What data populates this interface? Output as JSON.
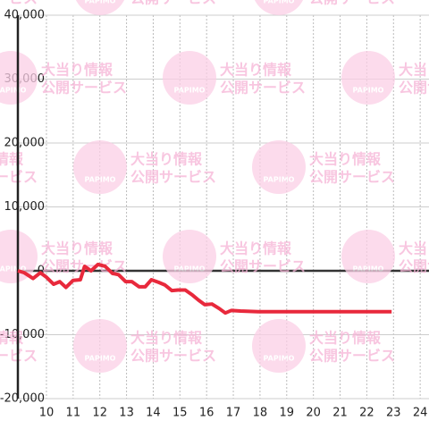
{
  "chart_data": {
    "type": "line",
    "x": [
      8.93,
      9.17,
      9.5,
      9.77,
      10,
      10.27,
      10.5,
      10.73,
      11,
      11.27,
      11.43,
      11.67,
      11.93,
      12.2,
      12.47,
      12.7,
      12.97,
      13.2,
      13.47,
      13.7,
      13.93,
      14.2,
      14.43,
      14.7,
      14.93,
      15.2,
      15.47,
      15.7,
      15.93,
      16.2,
      16.47,
      16.7,
      16.93,
      17.27,
      17.93,
      22.93
    ],
    "values": [
      0,
      -300,
      -1200,
      -300,
      -1000,
      -2100,
      -1700,
      -2600,
      -1500,
      -1400,
      700,
      0,
      1000,
      700,
      -400,
      -600,
      -1700,
      -1700,
      -2500,
      -2500,
      -1400,
      -1800,
      -2200,
      -3100,
      -3000,
      -3000,
      -3800,
      -4600,
      -5300,
      -5200,
      -5900,
      -6600,
      -6200,
      -6300,
      -6400,
      -6400
    ],
    "color": "#e8293c",
    "xlim": [
      8.93,
      24.33
    ],
    "xticks": [
      10,
      11,
      12,
      13,
      14,
      15,
      16,
      17,
      18,
      19,
      20,
      21,
      22,
      23,
      24
    ],
    "ylim": [
      -20000,
      40000
    ],
    "yticks": [
      {
        "value": -20000,
        "label": "-20,000"
      },
      {
        "value": -10000,
        "label": "-10,000"
      },
      0,
      {
        "value": 10000,
        "label": "10,000"
      },
      {
        "value": 20000,
        "label": "20,000"
      },
      {
        "value": 30000,
        "label": "30,000"
      },
      {
        "value": 40000,
        "label": "40,000"
      }
    ],
    "grid": true
  },
  "watermark": {
    "brand": "PAPIMO",
    "line1": "大当り情報",
    "line2": "公開サービス"
  }
}
